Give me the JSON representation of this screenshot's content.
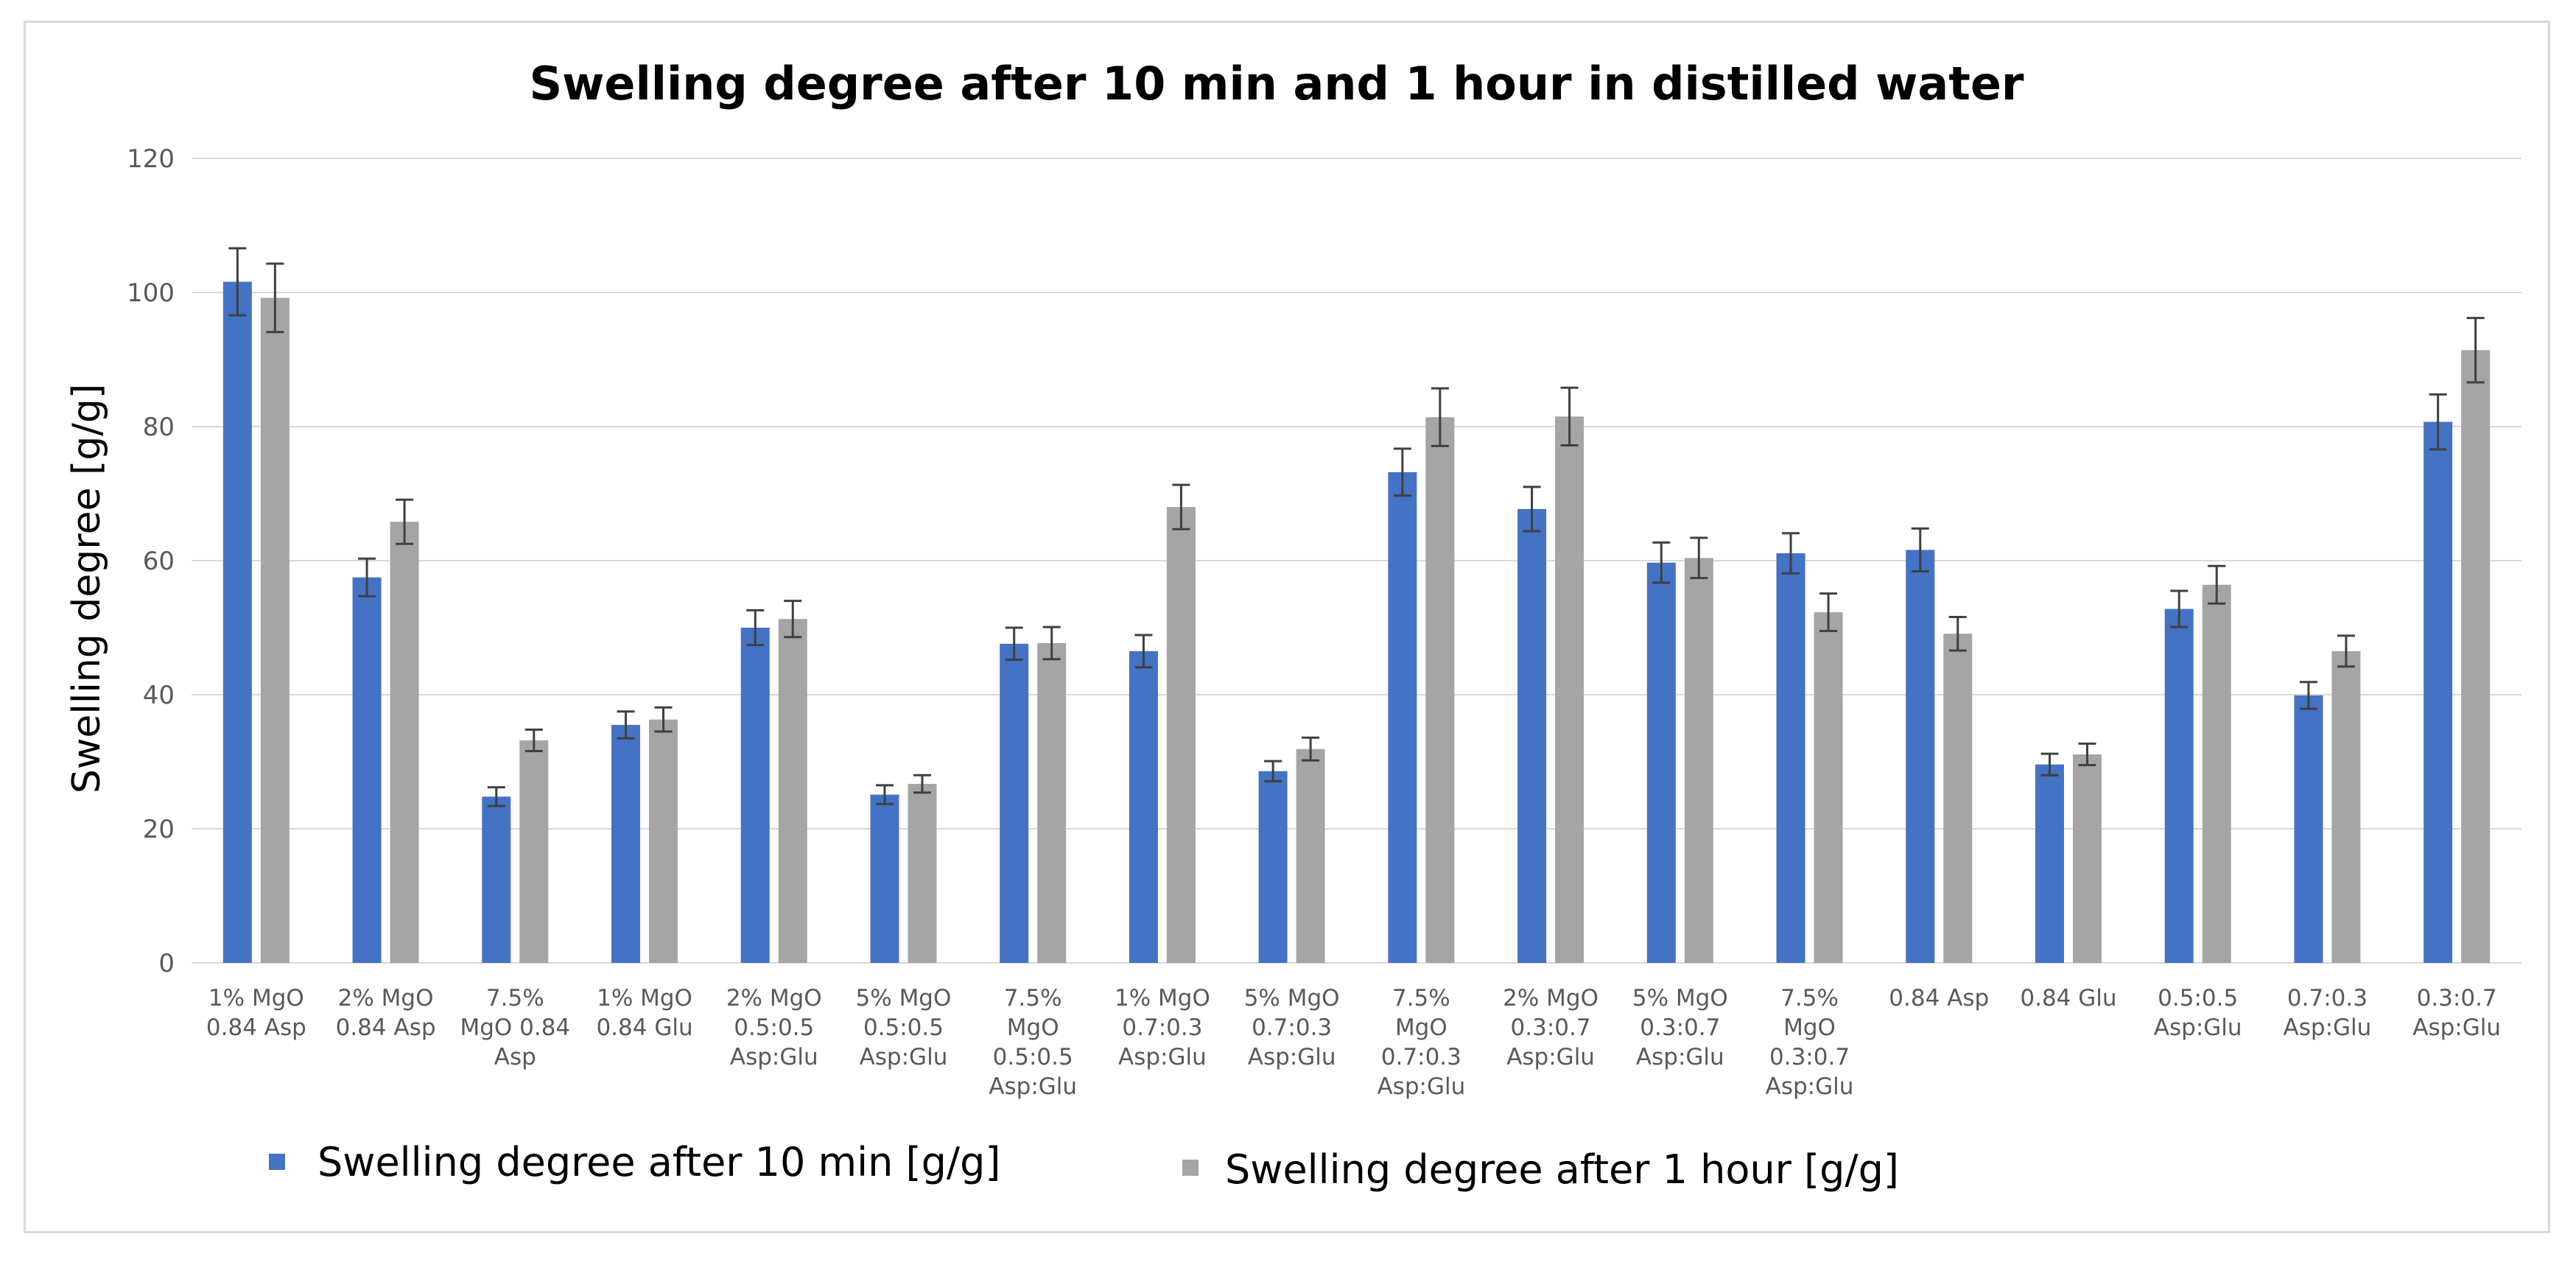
{
  "chart_data": {
    "type": "bar",
    "title": "Swelling degree after 10 min and 1 hour in distilled water",
    "xlabel": "",
    "ylabel": "Swelling degree [g/g]",
    "ylim": [
      0,
      120
    ],
    "yticks": [
      0,
      20,
      40,
      60,
      80,
      100,
      120
    ],
    "grid": true,
    "legend_position": "bottom",
    "error_bars": true,
    "categories": [
      [
        "1% MgO",
        "0.84 Asp"
      ],
      [
        "2% MgO",
        "0.84 Asp"
      ],
      [
        "7.5%",
        "MgO 0.84",
        "Asp"
      ],
      [
        "1% MgO",
        "0.84 Glu"
      ],
      [
        "2% MgO",
        "0.5:0.5",
        "Asp:Glu"
      ],
      [
        "5% MgO",
        "0.5:0.5",
        "Asp:Glu"
      ],
      [
        "7.5%",
        "MgO",
        "0.5:0.5",
        "Asp:Glu"
      ],
      [
        "1% MgO",
        "0.7:0.3",
        "Asp:Glu"
      ],
      [
        "5% MgO",
        "0.7:0.3",
        "Asp:Glu"
      ],
      [
        "7.5%",
        "MgO",
        "0.7:0.3",
        "Asp:Glu"
      ],
      [
        "2% MgO",
        "0.3:0.7",
        "Asp:Glu"
      ],
      [
        "5% MgO",
        "0.3:0.7",
        "Asp:Glu"
      ],
      [
        "7.5%",
        "MgO",
        "0.3:0.7",
        "Asp:Glu"
      ],
      [
        "0.84 Asp"
      ],
      [
        "0.84 Glu"
      ],
      [
        "0.5:0.5",
        "Asp:Glu"
      ],
      [
        "0.7:0.3",
        "Asp:Glu"
      ],
      [
        "0.3:0.7",
        "Asp:Glu"
      ]
    ],
    "series": [
      {
        "name": "Swelling degree after 10 min [g/g]",
        "color": "#4472c4",
        "values": [
          101.6,
          57.5,
          24.8,
          35.5,
          50.0,
          25.1,
          47.6,
          46.5,
          28.6,
          73.2,
          67.7,
          59.7,
          61.1,
          61.6,
          29.6,
          52.8,
          39.9,
          80.7
        ],
        "errors": [
          5.0,
          2.8,
          1.4,
          2.0,
          2.6,
          1.4,
          2.4,
          2.4,
          1.5,
          3.5,
          3.3,
          3.0,
          3.0,
          3.2,
          1.6,
          2.7,
          2.0,
          4.1
        ]
      },
      {
        "name": "Swelling degree after 1 hour [g/g]",
        "color": "#a5a5a5",
        "values": [
          99.2,
          65.8,
          33.2,
          36.3,
          51.3,
          26.7,
          47.7,
          68.0,
          31.9,
          81.4,
          81.5,
          60.4,
          52.3,
          49.1,
          31.1,
          56.4,
          46.5,
          91.4
        ],
        "errors": [
          5.1,
          3.3,
          1.6,
          1.8,
          2.7,
          1.3,
          2.4,
          3.3,
          1.7,
          4.3,
          4.3,
          3.0,
          2.8,
          2.5,
          1.6,
          2.8,
          2.3,
          4.8
        ]
      }
    ]
  }
}
